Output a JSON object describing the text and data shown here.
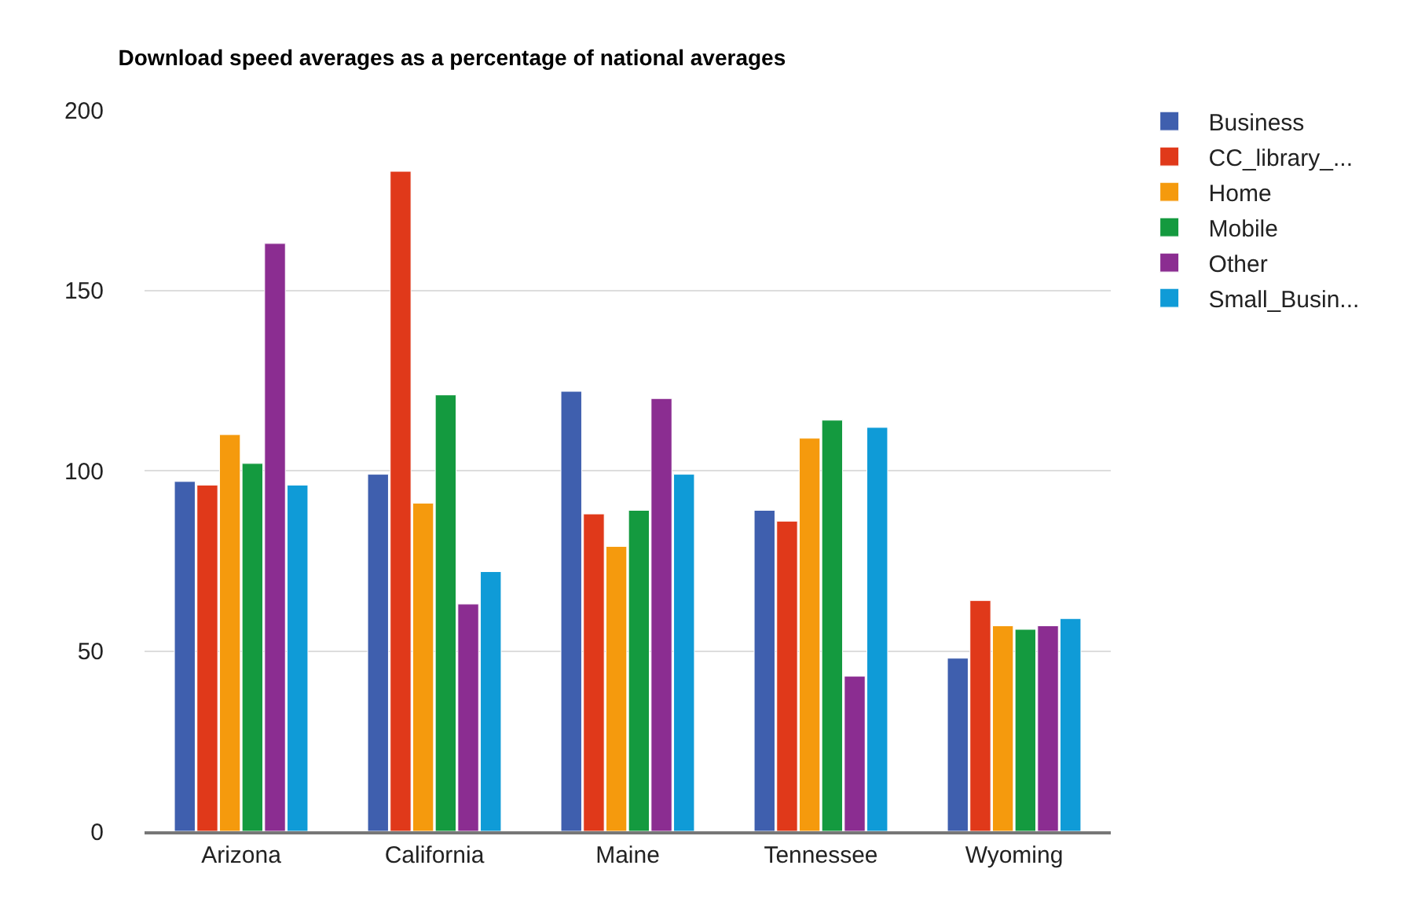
{
  "chart_data": {
    "type": "bar",
    "title": "Download speed averages as a percentage of national averages",
    "categories": [
      "Arizona",
      "California",
      "Maine",
      "Tennessee",
      "Wyoming"
    ],
    "series": [
      {
        "name": "Business",
        "color": "#3f5fae",
        "values": [
          97,
          99,
          122,
          89,
          48
        ]
      },
      {
        "name": "CC_library_...",
        "color": "#e0391a",
        "values": [
          96,
          183,
          88,
          86,
          64
        ]
      },
      {
        "name": "Home",
        "color": "#f59a0d",
        "values": [
          110,
          91,
          79,
          109,
          57
        ]
      },
      {
        "name": "Mobile",
        "color": "#149a3f",
        "values": [
          102,
          121,
          89,
          114,
          56
        ]
      },
      {
        "name": "Other",
        "color": "#8b2d91",
        "values": [
          163,
          63,
          120,
          43,
          57
        ]
      },
      {
        "name": "Small_Busin...",
        "color": "#0f9bd7",
        "values": [
          96,
          72,
          99,
          112,
          59
        ]
      }
    ],
    "ylim": [
      0,
      200
    ],
    "yticks": [
      0,
      50,
      100,
      150,
      200
    ],
    "grid": "y",
    "legend": "top right"
  }
}
